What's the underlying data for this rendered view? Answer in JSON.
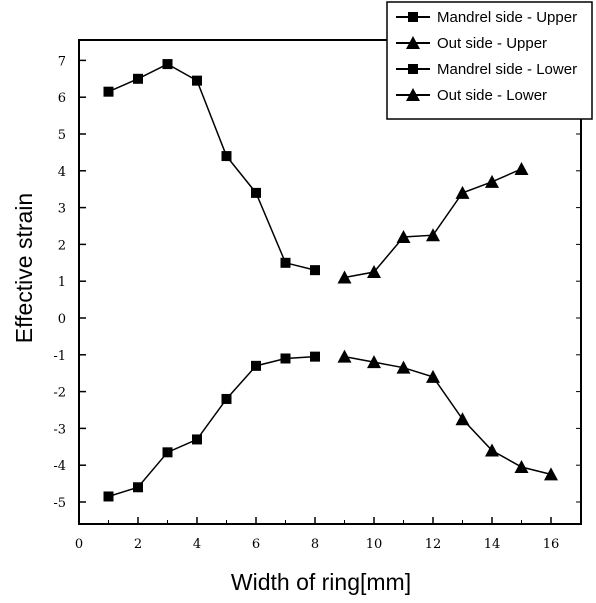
{
  "chart_data": {
    "type": "line",
    "xlabel": "Width of ring[mm]",
    "ylabel": "Effective strain",
    "xlim": [
      0,
      17
    ],
    "ylim": [
      -5.3,
      7.5
    ],
    "xticks": [
      "0",
      "2",
      "4",
      "6",
      "8",
      "10",
      "12",
      "14",
      "16"
    ],
    "yticks": [
      "-5",
      "-4",
      "-3",
      "-2",
      "-1",
      "0",
      "1",
      "2",
      "3",
      "4",
      "5",
      "6",
      "7"
    ],
    "legend_position": "top-right",
    "series": [
      {
        "name": "Mandrel side - Upper",
        "marker": "square",
        "x": [
          1,
          2,
          3,
          4,
          5,
          6,
          7,
          8
        ],
        "y": [
          6.15,
          6.5,
          6.9,
          6.45,
          4.4,
          3.4,
          1.5,
          1.3
        ]
      },
      {
        "name": "Out side - Upper",
        "marker": "triangle",
        "x": [
          9,
          10,
          11,
          12,
          13,
          14,
          15
        ],
        "y": [
          1.1,
          1.25,
          2.2,
          2.25,
          3.4,
          3.7,
          4.05
        ]
      },
      {
        "name": "Mandrel side - Lower",
        "marker": "square",
        "x": [
          1,
          2,
          3,
          4,
          5,
          6,
          7,
          8
        ],
        "y": [
          -4.85,
          -4.6,
          -3.65,
          -3.3,
          -2.2,
          -1.3,
          -1.1,
          -1.05
        ]
      },
      {
        "name": "Out side - Lower",
        "marker": "triangle",
        "x": [
          9,
          10,
          11,
          12,
          13,
          14,
          15,
          16
        ],
        "y": [
          -1.05,
          -1.2,
          -1.35,
          -1.6,
          -2.75,
          -3.6,
          -4.05,
          -4.25
        ]
      }
    ]
  }
}
